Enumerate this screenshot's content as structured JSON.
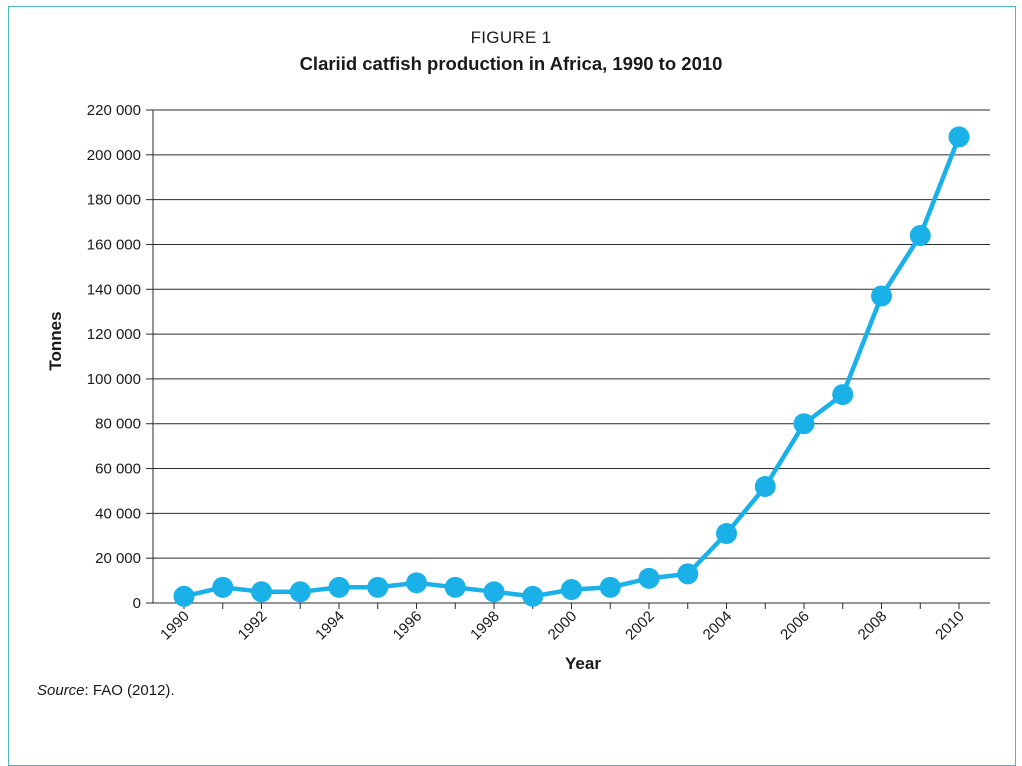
{
  "figure": {
    "label": "FIGURE 1",
    "source_prefix": "Source",
    "source_text": ": FAO (2012)."
  },
  "colors": {
    "series": "#1ab0e8",
    "frame": "#4fb7c3",
    "grid": "#2b2b2b"
  },
  "chart_data": {
    "type": "line",
    "title": "Clariid catfish production in Africa, 1990 to 2010",
    "xlabel": "Year",
    "ylabel": "Tonnes",
    "ylim": [
      0,
      220000
    ],
    "y_ticks": [
      0,
      20000,
      40000,
      60000,
      80000,
      100000,
      120000,
      140000,
      160000,
      180000,
      200000,
      220000
    ],
    "y_tick_labels": [
      "0",
      "20 000",
      "40 000",
      "60 000",
      "80 000",
      "100 000",
      "120 000",
      "140 000",
      "160 000",
      "180 000",
      "200 000",
      "220 000"
    ],
    "x": [
      1990,
      1991,
      1992,
      1993,
      1994,
      1995,
      1996,
      1997,
      1998,
      1999,
      2000,
      2001,
      2002,
      2003,
      2004,
      2005,
      2006,
      2007,
      2008,
      2009,
      2010
    ],
    "x_tick_labels": [
      "1990",
      "1992",
      "1994",
      "1996",
      "1998",
      "2000",
      "2002",
      "2004",
      "2006",
      "2008",
      "2010"
    ],
    "x_tick_years": [
      1990,
      1992,
      1994,
      1996,
      1998,
      2000,
      2002,
      2004,
      2006,
      2008,
      2010
    ],
    "series": [
      {
        "values": [
          3000,
          7000,
          5000,
          5000,
          7000,
          7000,
          9000,
          7000,
          5000,
          3000,
          6000,
          7000,
          11000,
          13000,
          31000,
          52000,
          80000,
          93000,
          137000,
          164000,
          208000
        ]
      }
    ],
    "grid": true,
    "legend": false
  }
}
